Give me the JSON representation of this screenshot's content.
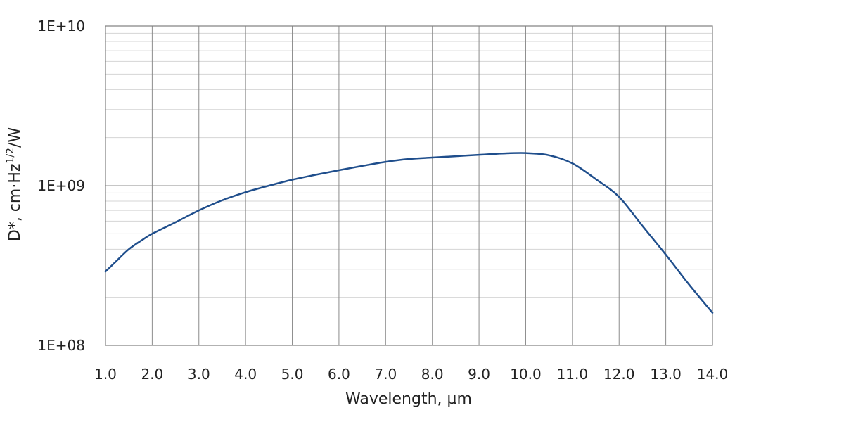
{
  "chart_data": {
    "type": "line",
    "xlabel": "Wavelength, µm",
    "ylabel": {
      "base": "D*, cm·Hz",
      "superscript": "1/2",
      "suffix": "/W"
    },
    "x_scale": "linear",
    "y_scale": "log",
    "xlim": [
      1.0,
      14.0
    ],
    "ylim": [
      100000000,
      10000000000
    ],
    "x_ticks": [
      1,
      2,
      3,
      4,
      5,
      6,
      7,
      8,
      9,
      10,
      11,
      12,
      13,
      14
    ],
    "x_tick_labels": [
      "1.0",
      "2.0",
      "3.0",
      "4.0",
      "5.0",
      "6.0",
      "7.0",
      "8.0",
      "9.0",
      "10.0",
      "11.0",
      "12.0",
      "13.0",
      "14.0"
    ],
    "y_ticks": [
      100000000,
      1000000000,
      10000000000
    ],
    "y_tick_labels": [
      "1E+08",
      "1E+09",
      "1E+10"
    ],
    "grid": true,
    "minor_grid": true,
    "legend": "none",
    "series": [
      {
        "color": "#1f4e8c",
        "x": [
          1.0,
          1.2,
          1.5,
          1.8,
          2.0,
          2.5,
          3.0,
          3.5,
          4.0,
          4.5,
          5.0,
          5.5,
          6.0,
          6.5,
          7.0,
          7.5,
          8.0,
          8.5,
          9.0,
          9.5,
          10.0,
          10.5,
          11.0,
          11.5,
          12.0,
          12.5,
          13.0,
          13.5,
          14.0
        ],
        "y": [
          290000000,
          330000000,
          400000000,
          460000000,
          500000000,
          590000000,
          700000000,
          810000000,
          910000000,
          1000000000,
          1090000000,
          1170000000,
          1250000000,
          1330000000,
          1410000000,
          1470000000,
          1500000000,
          1530000000,
          1560000000,
          1590000000,
          1600000000,
          1550000000,
          1380000000,
          1100000000,
          850000000,
          560000000,
          370000000,
          240000000,
          160000000
        ]
      }
    ]
  }
}
